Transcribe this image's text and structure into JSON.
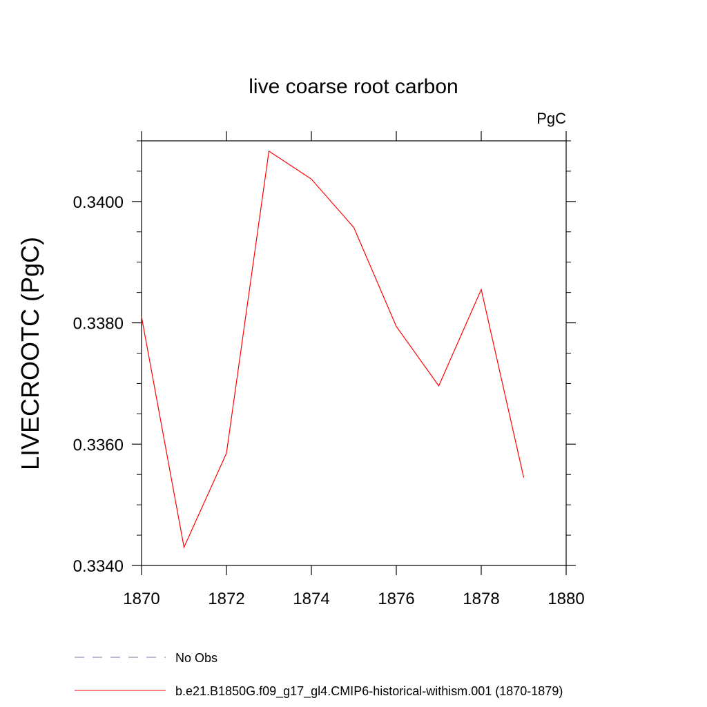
{
  "chart_data": {
    "type": "line",
    "title": "live coarse root carbon",
    "units": "PgC",
    "ylabel": "LIVECROOTC  (PgC)",
    "xlabel": "",
    "xlim": [
      1870,
      1880
    ],
    "ylim": [
      0.334,
      0.341
    ],
    "xticks": [
      1870,
      1872,
      1874,
      1876,
      1878,
      1880
    ],
    "xtick_labels": [
      "1870",
      "1872",
      "1874",
      "1876",
      "1878",
      "1880"
    ],
    "yticks": [
      0.334,
      0.336,
      0.338,
      0.34
    ],
    "ytick_labels": [
      "0.3340",
      "0.3360",
      "0.3380",
      "0.3400"
    ],
    "grid": false,
    "legend_placement": "bottom",
    "series": [
      {
        "name": "No Obs",
        "color": "#7b6fb0",
        "style": "dashed",
        "x": [],
        "y": []
      },
      {
        "name": "b.e21.B1850G.f09_g17_gl4.CMIP6-historical-withism.001 (1870-1879)",
        "color": "#ff0000",
        "style": "solid",
        "x": [
          1870,
          1871,
          1872,
          1873,
          1874,
          1875,
          1876,
          1877,
          1878,
          1879
        ],
        "y": [
          0.3381,
          0.3343,
          0.33585,
          0.34083,
          0.34037,
          0.33957,
          0.33794,
          0.33696,
          0.33855,
          0.33545
        ]
      }
    ]
  }
}
